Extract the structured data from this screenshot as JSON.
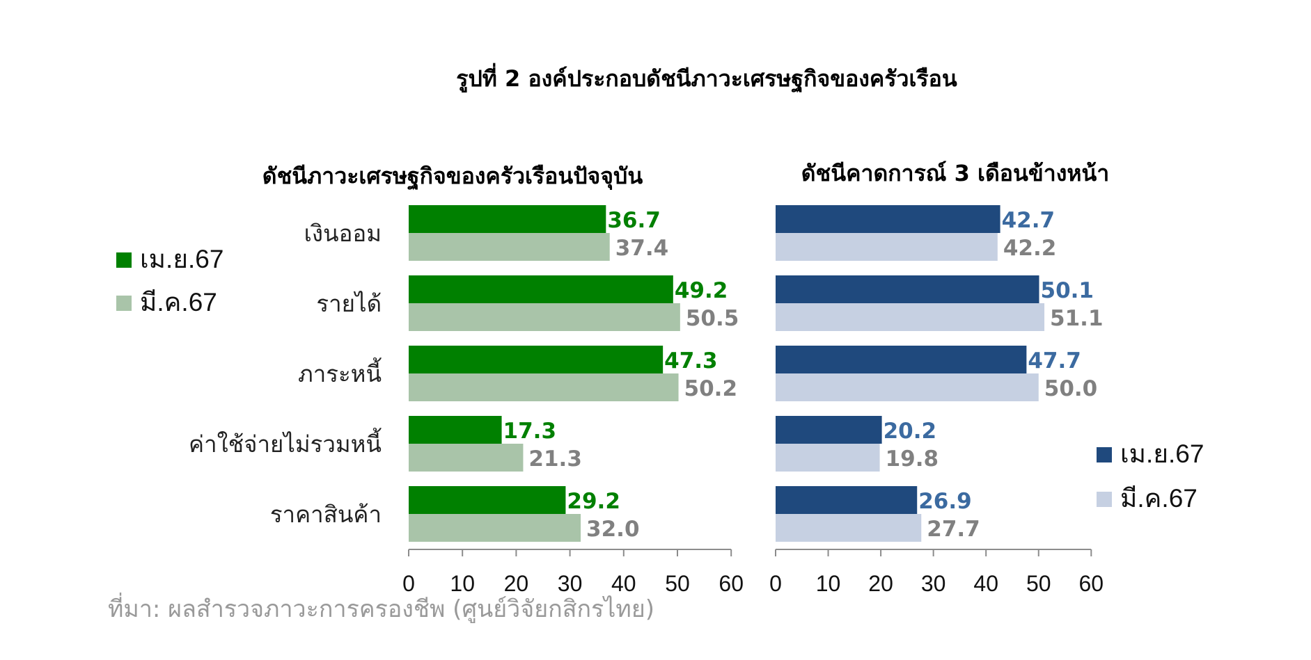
{
  "figure_title": "รูปที่ 2 องค์ประกอบดัชนีภาวะเศรษฐกิจของครัวเรือน",
  "source": "ที่มา: ผลสำรวจภาวะการครองชีพ (ศูนย์วิจัยกสิกรไทย)",
  "colors": {
    "left_primary": "#008000",
    "left_secondary": "#a9c4a9",
    "right_primary": "#1f497d",
    "right_secondary": "#c6d0e2",
    "left_primary_label": "#008000",
    "right_primary_label": "#3b6aa0",
    "secondary_label": "#808080"
  },
  "chart_data": [
    {
      "type": "bar",
      "orientation": "horizontal",
      "title": "ดัชนีภาวะเศรษฐกิจของครัวเรือนปัจจุบัน",
      "categories": [
        "เงินออม",
        "รายได้",
        "ภาระหนี้",
        "ค่าใช้จ่ายไม่รวมหนี้",
        "ราคาสินค้า"
      ],
      "series": [
        {
          "name": "เม.ย.67",
          "values": [
            36.7,
            49.2,
            47.3,
            17.3,
            29.2
          ]
        },
        {
          "name": "มี.ค.67",
          "values": [
            37.4,
            50.5,
            50.2,
            21.3,
            32.0
          ]
        }
      ],
      "xlim": [
        0,
        60
      ],
      "xticks": [
        "0",
        "10",
        "20",
        "30",
        "40",
        "50",
        "60"
      ],
      "grid": false,
      "legend": "left"
    },
    {
      "type": "bar",
      "orientation": "horizontal",
      "title": "ดัชนีคาดการณ์ 3 เดือนข้างหน้า",
      "categories": [
        "เงินออม",
        "รายได้",
        "ภาระหนี้",
        "ค่าใช้จ่ายไม่รวมหนี้",
        "ราคาสินค้า"
      ],
      "series": [
        {
          "name": "เม.ย.67",
          "values": [
            42.7,
            50.1,
            47.7,
            20.2,
            26.9
          ]
        },
        {
          "name": "มี.ค.67",
          "values": [
            42.2,
            51.1,
            50.0,
            19.8,
            27.7
          ]
        }
      ],
      "xlim": [
        0,
        60
      ],
      "xticks": [
        "0",
        "10",
        "20",
        "30",
        "40",
        "50",
        "60"
      ],
      "grid": false,
      "legend": "bottom-right"
    }
  ]
}
